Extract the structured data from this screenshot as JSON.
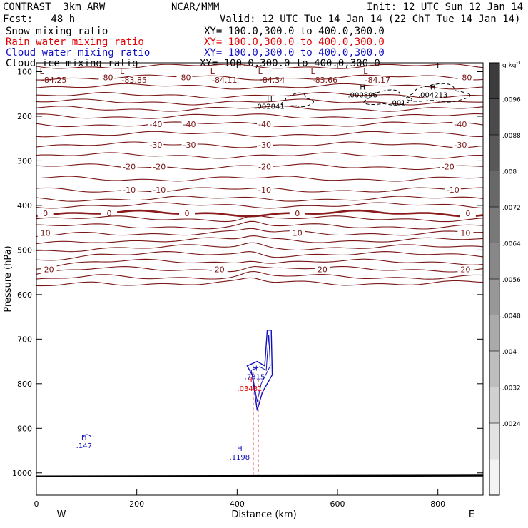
{
  "header": {
    "model": "CONTRAST  3km ARW",
    "center": "NCAR/MMM",
    "init": "Init: 12 UTC Sun 12 Jan 14",
    "fcst": "Fcst:   48 h",
    "valid": "Valid: 12 UTC Tue 14 Jan 14 (22 ChT Tue 14 Jan 14)",
    "fields": [
      {
        "name": "Snow mixing ratio",
        "xy": "XY= 100.0,300.0 to 400.0,300.0",
        "color": "#000000"
      },
      {
        "name": "Rain water mixing ratio",
        "xy": "XY= 100.0,300.0 to 400.0,300.0",
        "color": "#e00000"
      },
      {
        "name": "Cloud water mixing ratio",
        "xy": "XY= 100.0,300.0 to 400.0,300.0",
        "color": "#1010c0"
      },
      {
        "name": "Cloud ice mixing ratio",
        "xy": "XY= 100.0,300.0 to 400.0,300.0",
        "color": "#000000"
      }
    ]
  },
  "chart_data": {
    "type": "contour-cross-section",
    "xlabel": "Distance (km)",
    "ylabel": "Pressure (hPa)",
    "xlim": [
      0,
      890
    ],
    "ylim": [
      1050,
      80
    ],
    "xticks": [
      0,
      200,
      400,
      600,
      800
    ],
    "yticks": [
      100,
      200,
      300,
      400,
      500,
      600,
      700,
      800,
      900,
      1000
    ],
    "x_end_labels": {
      "left": "W",
      "right": "E"
    },
    "colorbar": {
      "unit": "g kg",
      "unit_exp": "-1",
      "levels": [
        ".0096",
        ".0088",
        ".008",
        ".0072",
        ".0064",
        ".0056",
        ".0048",
        ".004",
        ".0032",
        ".0024"
      ],
      "colors": [
        "#3c3c3c",
        "#4a4a4a",
        "#585858",
        "#686868",
        "#787878",
        "#888888",
        "#989898",
        "#aaaaaa",
        "#bdbdbd",
        "#d0d0d0",
        "#e2e2e2",
        "#f3f3f3"
      ]
    },
    "temperature_isotherms": [
      {
        "value": -84,
        "p": 88
      },
      {
        "value": -80,
        "p": 113,
        "labels": [
          {
            "text": "-80",
            "x": 140
          },
          {
            "text": "-80",
            "x": 295
          },
          {
            "text": "-80",
            "x": 855
          }
        ]
      },
      {
        "value": -70,
        "p": 133
      },
      {
        "value": -60,
        "p": 153
      },
      {
        "value": -60,
        "p": 168
      },
      {
        "value": -50,
        "p": 183
      },
      {
        "value": -50,
        "p": 200
      },
      {
        "value": -40,
        "p": 218,
        "labels": [
          {
            "text": "-40",
            "x": 238
          },
          {
            "text": "-40",
            "x": 305
          },
          {
            "text": "-40",
            "x": 455
          },
          {
            "text": "-40",
            "x": 845
          }
        ]
      },
      {
        "value": -35,
        "p": 240
      },
      {
        "value": -30,
        "p": 264,
        "labels": [
          {
            "text": "-30",
            "x": 238
          },
          {
            "text": "-30",
            "x": 305
          },
          {
            "text": "-30",
            "x": 455
          },
          {
            "text": "-30",
            "x": 845
          }
        ]
      },
      {
        "value": -25,
        "p": 288
      },
      {
        "value": -20,
        "p": 313,
        "labels": [
          {
            "text": "-20",
            "x": 185
          },
          {
            "text": "-20",
            "x": 245
          },
          {
            "text": "-20",
            "x": 455
          },
          {
            "text": "-20",
            "x": 820
          }
        ]
      },
      {
        "value": -15,
        "p": 340
      },
      {
        "value": -10,
        "p": 365,
        "labels": [
          {
            "text": "-10",
            "x": 185
          },
          {
            "text": "-10",
            "x": 245
          },
          {
            "text": "-10",
            "x": 455
          },
          {
            "text": "-10",
            "x": 830
          }
        ]
      },
      {
        "value": -5,
        "p": 385
      },
      {
        "value": -5,
        "p": 400
      },
      {
        "value": 0,
        "p": 418,
        "labels": [
          {
            "text": "0",
            "x": 18
          },
          {
            "text": "0",
            "x": 145
          },
          {
            "text": "0",
            "x": 300
          },
          {
            "text": "0",
            "x": 520
          },
          {
            "text": "0",
            "x": 860
          }
        ]
      },
      {
        "value": 5,
        "p": 430
      },
      {
        "value": 5,
        "p": 447
      },
      {
        "value": 10,
        "p": 462,
        "labels": [
          {
            "text": "10",
            "x": 18
          },
          {
            "text": "10",
            "x": 520
          },
          {
            "text": "10",
            "x": 855
          }
        ]
      },
      {
        "value": 12,
        "p": 478
      },
      {
        "value": 14,
        "p": 494
      },
      {
        "value": 16,
        "p": 510
      },
      {
        "value": 18,
        "p": 527
      },
      {
        "value": 20,
        "p": 543,
        "labels": [
          {
            "text": "20",
            "x": 25
          },
          {
            "text": "20",
            "x": 365
          },
          {
            "text": "20",
            "x": 570
          },
          {
            "text": "20",
            "x": 855
          }
        ]
      },
      {
        "value": 22,
        "p": 560
      },
      {
        "value": 24,
        "p": 574
      }
    ],
    "minimum_temperature_labels": [
      {
        "symbol": "L",
        "value": "-84.25",
        "x": 35
      },
      {
        "symbol": "L",
        "value": "-83.85",
        "x": 195
      },
      {
        "symbol": "L",
        "value": "-84.11",
        "x": 375
      },
      {
        "symbol": "L",
        "value": "-84.34",
        "x": 470
      },
      {
        "symbol": "L",
        "value": "-83.66",
        "x": 575
      },
      {
        "symbol": "L",
        "value": "-84.17",
        "x": 680
      }
    ],
    "ice_maxima": [
      {
        "symbol": "H",
        "value": ".002841",
        "x": 465,
        "p": 175
      },
      {
        "symbol": "H",
        "value": ".000896",
        "x": 650,
        "p": 150
      },
      {
        "symbol": "H",
        "value": ".004213",
        "x": 790,
        "p": 150
      },
      {
        "label": ".001",
        "x": 720,
        "p": 175
      }
    ],
    "cloud_water_maxima": [
      {
        "symbol": "H",
        "value": ".7315",
        "x": 435,
        "p": 780
      },
      {
        "symbol": "H",
        "value": ".147",
        "x": 95,
        "p": 935
      },
      {
        "symbol": "H",
        "value": ".1198",
        "x": 405,
        "p": 960
      }
    ],
    "rain_water_maxima": [
      {
        "symbol": "H",
        "value": ".03481",
        "x": 425,
        "p": 805
      }
    ]
  }
}
